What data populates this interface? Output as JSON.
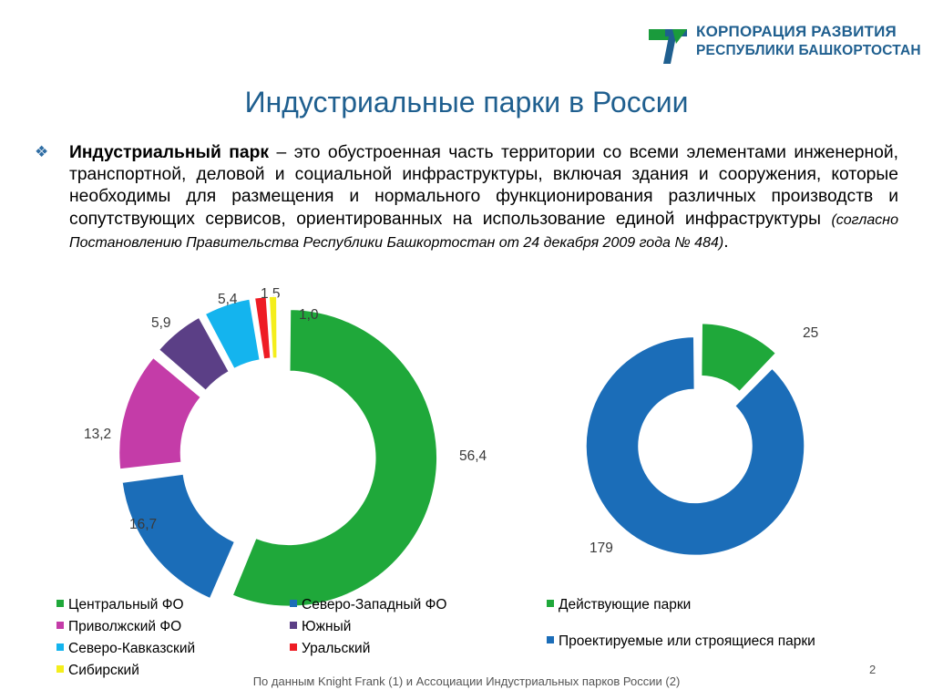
{
  "logo": {
    "line1": "КОРПОРАЦИЯ РАЗВИТИЯ",
    "line2": "РЕСПУБЛИКИ БАШКОРТОСТАН",
    "icon": "corporation-logo-mark",
    "colors": {
      "green": "#1a9b3c",
      "blue": "#1f5f8f"
    }
  },
  "title": "Индустриальные парки в России",
  "definition": {
    "bullet_icon": "diamond-bullet",
    "term": "Индустриальный парк",
    "text": " – это обустроенная часть территории со всеми элементами инженерной, транспортной, деловой и социальной инфраструктуры, включая здания и сооружения, которые необходимы для размещения и нормального функционирования различных производств и сопутствующих сервисов, ориентированных на использование единой инфраструктуры",
    "source": "(согласно Постановлению Правительства Республики Башкортостан от 24 декабря 2009 года № 484)",
    "tail": "."
  },
  "chart_data": [
    {
      "type": "pie",
      "variant": "exploded-donut",
      "categories": [
        "Центральный ФО",
        "Северо-Западный ФО",
        "Приволжский ФО",
        "Южный",
        "Северо-Кавказский",
        "Уральский",
        "Сибирский"
      ],
      "values": [
        56.4,
        16.7,
        13.2,
        5.9,
        5.4,
        1.5,
        1.0
      ],
      "labels": [
        "56,4",
        "16,7",
        "13,2",
        "5,9",
        "5,4",
        "1,5",
        "1,0"
      ],
      "colors": [
        "#1fa83a",
        "#1b6db8",
        "#c43ca8",
        "#5b3f86",
        "#14b4ee",
        "#ee1c24",
        "#f4ee1c"
      ],
      "legend_position": "bottom"
    },
    {
      "type": "pie",
      "variant": "exploded-donut",
      "categories": [
        "Действующие парки",
        "Проектируемые или строящиеся парки"
      ],
      "values": [
        25,
        179
      ],
      "labels": [
        "25",
        "179"
      ],
      "colors": [
        "#1fa83a",
        "#1b6db8"
      ],
      "legend_position": "bottom"
    }
  ],
  "footer": {
    "note": "По данным Knight Frank (1) и Ассоциации Индустриальных парков России (2)",
    "page_number": "2"
  }
}
